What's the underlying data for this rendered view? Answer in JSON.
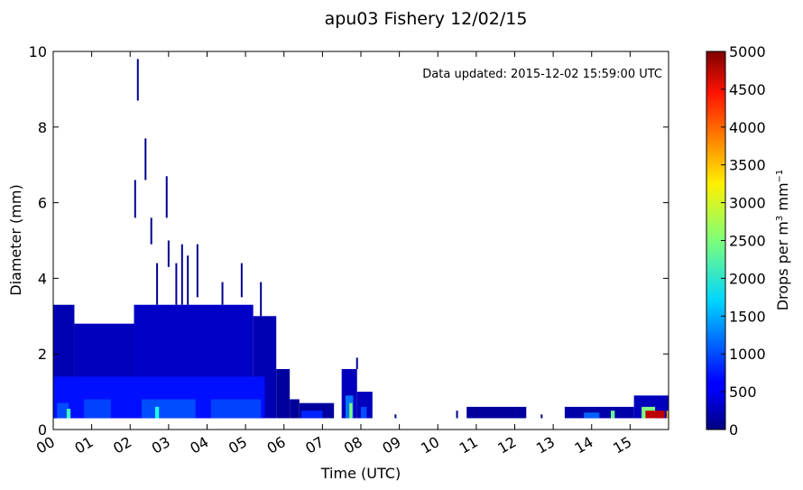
{
  "chart_data": {
    "type": "heatmap",
    "title": "apu03 Fishery 12/02/15",
    "annotation": "Data updated:  2015-12-02 15:59:00 UTC",
    "xlabel": "Time (UTC)",
    "ylabel": "Diameter (mm)",
    "x_ticks": [
      "00",
      "01",
      "02",
      "03",
      "04",
      "05",
      "06",
      "07",
      "08",
      "09",
      "10",
      "11",
      "12",
      "13",
      "14",
      "15"
    ],
    "xlim": [
      0,
      16
    ],
    "y_ticks": [
      0,
      2,
      4,
      6,
      8,
      10
    ],
    "ylim": [
      0,
      10
    ],
    "colorbar": {
      "label": "Drops per m³  mm⁻¹",
      "label_main": "Drops per m",
      "label_sup": "3",
      "label_unit": "mm",
      "label_unit_sup": "−1",
      "ticks": [
        0,
        500,
        1000,
        1500,
        2000,
        2500,
        3000,
        3500,
        4000,
        4500,
        5000
      ],
      "range": [
        0,
        5000
      ],
      "colormap": "jet"
    },
    "regions": [
      {
        "x0": 0.0,
        "x1": 0.55,
        "y0": 0.3,
        "y1": 3.3,
        "value": 250
      },
      {
        "x0": 0.55,
        "x1": 2.1,
        "y0": 0.3,
        "y1": 2.8,
        "value": 300
      },
      {
        "x0": 2.1,
        "x1": 5.2,
        "y0": 0.3,
        "y1": 3.3,
        "value": 350
      },
      {
        "x0": 5.2,
        "x1": 5.8,
        "y0": 0.3,
        "y1": 3.0,
        "value": 250
      },
      {
        "x0": 5.8,
        "x1": 6.15,
        "y0": 0.3,
        "y1": 1.6,
        "value": 150
      },
      {
        "x0": 6.15,
        "x1": 6.4,
        "y0": 0.3,
        "y1": 0.8,
        "value": 120
      },
      {
        "x0": 6.4,
        "x1": 7.3,
        "y0": 0.3,
        "y1": 0.7,
        "value": 150
      },
      {
        "x0": 7.5,
        "x1": 7.9,
        "y0": 0.3,
        "y1": 1.6,
        "value": 300
      },
      {
        "x0": 7.9,
        "x1": 8.3,
        "y0": 0.3,
        "y1": 1.0,
        "value": 300
      },
      {
        "x0": 10.75,
        "x1": 12.3,
        "y0": 0.3,
        "y1": 0.6,
        "value": 150
      },
      {
        "x0": 13.3,
        "x1": 15.1,
        "y0": 0.3,
        "y1": 0.6,
        "value": 200
      },
      {
        "x0": 15.1,
        "x1": 16.0,
        "y0": 0.3,
        "y1": 0.9,
        "value": 300
      },
      {
        "x0": 0.0,
        "x1": 5.5,
        "y0": 0.3,
        "y1": 1.4,
        "value": 700
      },
      {
        "x0": 0.1,
        "x1": 0.4,
        "y0": 0.3,
        "y1": 0.7,
        "value": 1000
      },
      {
        "x0": 0.8,
        "x1": 1.5,
        "y0": 0.3,
        "y1": 0.8,
        "value": 950
      },
      {
        "x0": 2.3,
        "x1": 3.7,
        "y0": 0.3,
        "y1": 0.8,
        "value": 1000
      },
      {
        "x0": 4.1,
        "x1": 5.4,
        "y0": 0.3,
        "y1": 0.8,
        "value": 950
      },
      {
        "x0": 6.45,
        "x1": 7.0,
        "y0": 0.3,
        "y1": 0.5,
        "value": 800
      },
      {
        "x0": 7.6,
        "x1": 7.8,
        "y0": 0.3,
        "y1": 0.9,
        "value": 1200
      },
      {
        "x0": 8.0,
        "x1": 8.15,
        "y0": 0.3,
        "y1": 0.6,
        "value": 1000
      },
      {
        "x0": 13.8,
        "x1": 14.2,
        "y0": 0.3,
        "y1": 0.45,
        "value": 1100
      },
      {
        "x0": 15.3,
        "x1": 15.65,
        "y0": 0.3,
        "y1": 0.6,
        "value": 2500
      },
      {
        "x0": 15.4,
        "x1": 15.9,
        "y0": 0.3,
        "y1": 0.5,
        "value": 4700
      },
      {
        "x0": 0.35,
        "x1": 0.45,
        "y0": 0.3,
        "y1": 0.55,
        "value": 2200
      },
      {
        "x0": 2.65,
        "x1": 2.75,
        "y0": 0.3,
        "y1": 0.6,
        "value": 2000
      },
      {
        "x0": 7.7,
        "x1": 7.78,
        "y0": 0.3,
        "y1": 0.7,
        "value": 2500
      },
      {
        "x0": 14.5,
        "x1": 14.6,
        "y0": 0.3,
        "y1": 0.5,
        "value": 2400
      },
      {
        "x0": 15.95,
        "x1": 16.0,
        "y0": 0.3,
        "y1": 0.5,
        "value": 3500
      }
    ],
    "streaks": [
      {
        "x": 2.2,
        "y0": 8.7,
        "y1": 9.8,
        "value": 80
      },
      {
        "x": 2.4,
        "y0": 6.6,
        "y1": 7.7,
        "value": 80
      },
      {
        "x": 2.13,
        "y0": 5.6,
        "y1": 6.6,
        "value": 80
      },
      {
        "x": 2.55,
        "y0": 4.9,
        "y1": 5.6,
        "value": 80
      },
      {
        "x": 2.95,
        "y0": 5.6,
        "y1": 6.7,
        "value": 80
      },
      {
        "x": 3.0,
        "y0": 4.3,
        "y1": 5.0,
        "value": 80
      },
      {
        "x": 3.35,
        "y0": 3.3,
        "y1": 4.9,
        "value": 80
      },
      {
        "x": 3.75,
        "y0": 3.5,
        "y1": 4.9,
        "value": 80
      },
      {
        "x": 2.7,
        "y0": 3.3,
        "y1": 4.4,
        "value": 80
      },
      {
        "x": 3.2,
        "y0": 3.3,
        "y1": 4.4,
        "value": 80
      },
      {
        "x": 3.5,
        "y0": 3.3,
        "y1": 4.6,
        "value": 80
      },
      {
        "x": 4.9,
        "y0": 3.5,
        "y1": 4.4,
        "value": 80
      },
      {
        "x": 5.4,
        "y0": 3.0,
        "y1": 3.9,
        "value": 80
      },
      {
        "x": 4.4,
        "y0": 3.3,
        "y1": 3.9,
        "value": 80
      },
      {
        "x": 7.9,
        "y0": 1.6,
        "y1": 1.9,
        "value": 80
      },
      {
        "x": 8.9,
        "y0": 0.3,
        "y1": 0.4,
        "value": 80
      },
      {
        "x": 10.5,
        "y0": 0.3,
        "y1": 0.5,
        "value": 80
      },
      {
        "x": 12.7,
        "y0": 0.3,
        "y1": 0.4,
        "value": 80
      }
    ]
  }
}
